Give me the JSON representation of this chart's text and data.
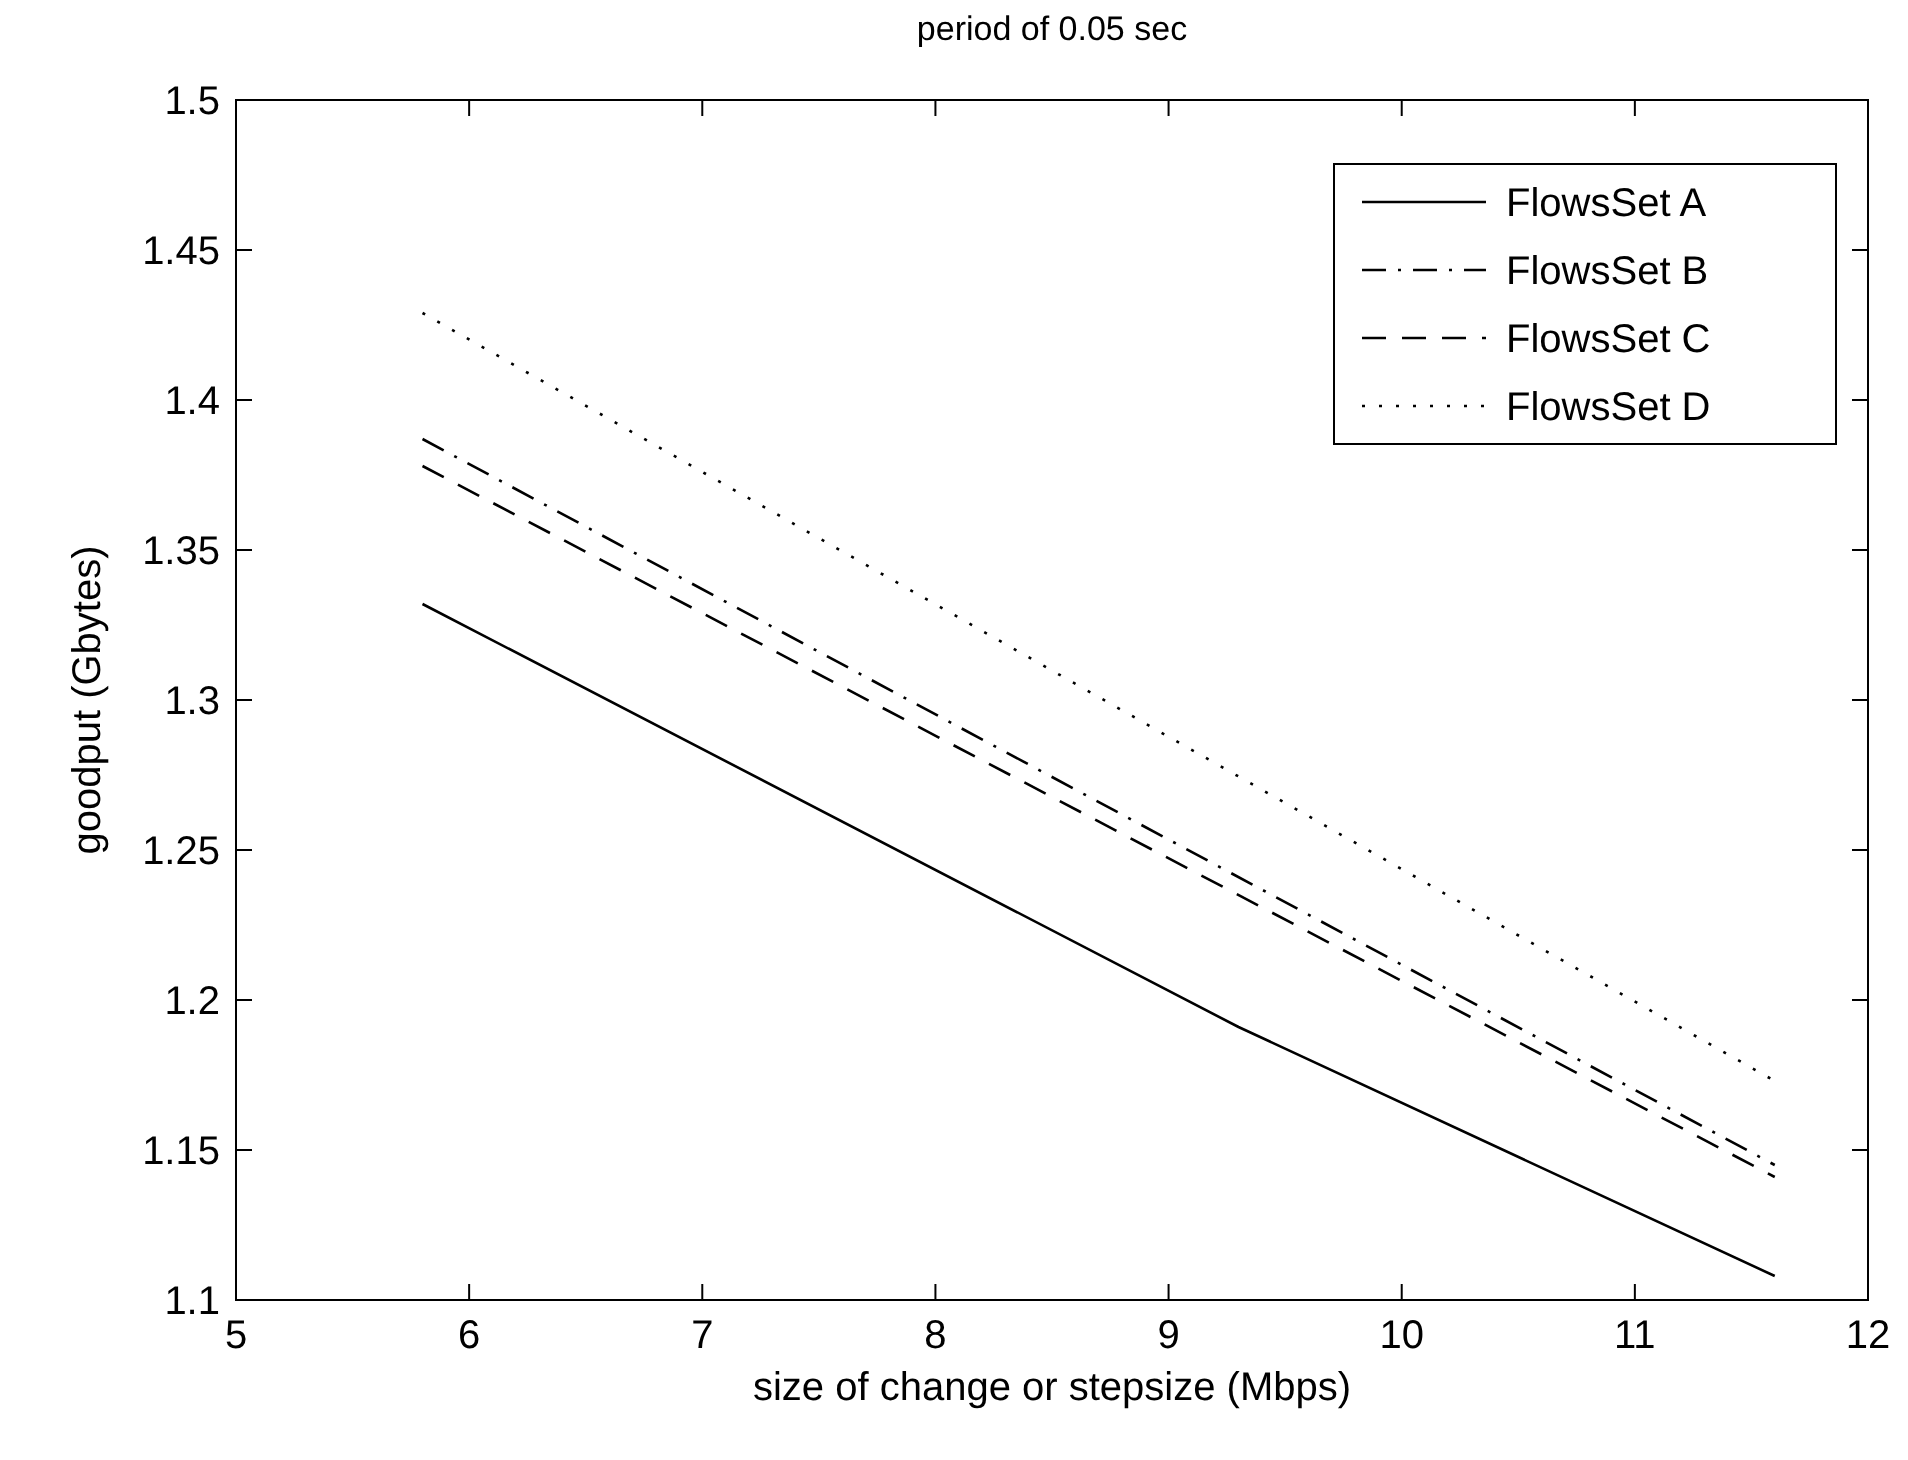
{
  "chart_data": {
    "type": "line",
    "title": "period of 0.05 sec",
    "xlabel": "size of change or stepsize (Mbps)",
    "ylabel": "goodput (Gbytes)",
    "xlim": [
      5,
      12
    ],
    "xticks": [
      5,
      6,
      7,
      8,
      9,
      10,
      11,
      12
    ],
    "ylim": [
      1.1,
      1.5
    ],
    "yticks": [
      1.1,
      1.15,
      1.2,
      1.25,
      1.3,
      1.35,
      1.4,
      1.45,
      1.5
    ],
    "legend": "top right",
    "grid": false,
    "marker": "none",
    "series": [
      {
        "name": "FlowsSet A",
        "color": "#000000",
        "line_style": "solid",
        "x": [
          5.8,
          9.3,
          11.6
        ],
        "values": [
          1.332,
          1.191,
          1.108
        ]
      },
      {
        "name": "FlowsSet B",
        "color": "#000000",
        "line_style": "dashdot",
        "x": [
          5.8,
          11.6
        ],
        "values": [
          1.387,
          1.145
        ]
      },
      {
        "name": "FlowsSet C",
        "color": "#000000",
        "line_style": "dashed",
        "x": [
          5.8,
          11.6
        ],
        "values": [
          1.378,
          1.141
        ]
      },
      {
        "name": "FlowsSet D",
        "color": "#000000",
        "line_style": "dotted",
        "x": [
          5.8,
          11.6
        ],
        "values": [
          1.429,
          1.173
        ]
      }
    ]
  }
}
